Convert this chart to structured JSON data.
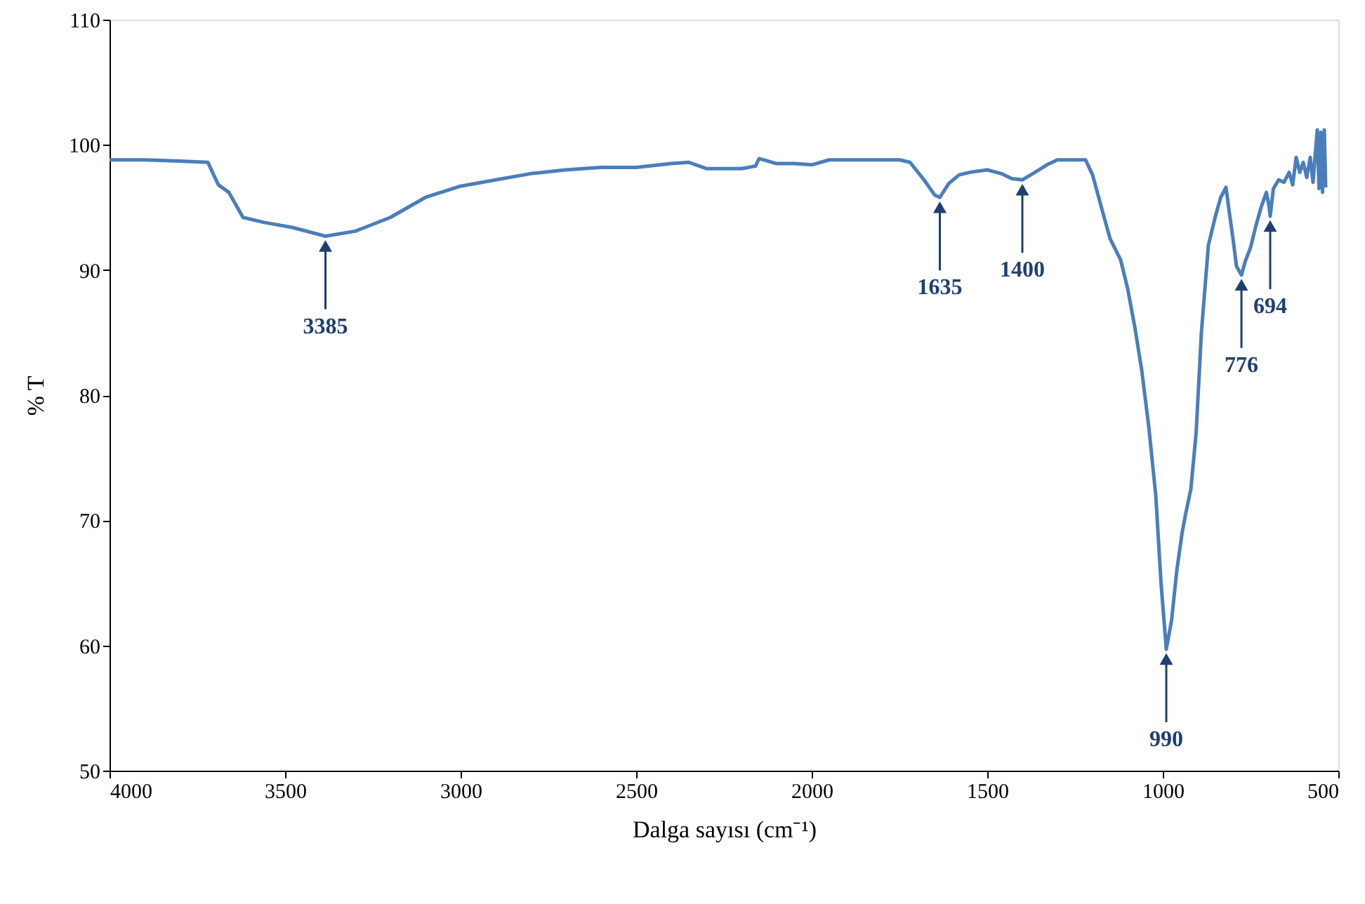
{
  "chart_data": {
    "type": "line",
    "xlabel": "Dalga sayısı (cm⁻¹)",
    "ylabel": "% T",
    "xlim": [
      4000,
      500
    ],
    "xticks": [
      4000,
      3500,
      3000,
      2500,
      2000,
      1500,
      1000,
      500
    ],
    "ylim": [
      50,
      110
    ],
    "yticks": [
      50,
      60,
      70,
      80,
      90,
      100,
      110
    ],
    "grid": false,
    "marker": "none",
    "line_style": "solid",
    "series": [
      {
        "color": "#4a7ebb",
        "x": [
          4000,
          3900,
          3800,
          3720,
          3690,
          3660,
          3640,
          3620,
          3560,
          3480,
          3385,
          3300,
          3200,
          3100,
          3000,
          2900,
          2800,
          2700,
          2600,
          2500,
          2400,
          2350,
          2300,
          2200,
          2160,
          2150,
          2100,
          2050,
          2000,
          1950,
          1850,
          1750,
          1720,
          1680,
          1650,
          1635,
          1610,
          1580,
          1550,
          1500,
          1460,
          1430,
          1400,
          1370,
          1330,
          1300,
          1250,
          1220,
          1200,
          1170,
          1150,
          1120,
          1100,
          1080,
          1060,
          1040,
          1020,
          1005,
          990,
          975,
          960,
          945,
          935,
          920,
          905,
          890,
          870,
          850,
          835,
          820,
          810,
          800,
          790,
          776,
          765,
          750,
          735,
          720,
          705,
          698,
          694,
          685,
          670,
          655,
          640,
          630,
          620,
          610,
          600,
          590,
          580,
          572,
          565,
          560,
          555,
          550,
          545,
          540,
          536
        ],
        "values": [
          98.8,
          98.8,
          98.7,
          98.6,
          96.8,
          96.2,
          95.2,
          94.2,
          93.8,
          93.4,
          92.7,
          93.1,
          94.2,
          95.8,
          96.7,
          97.2,
          97.7,
          98.0,
          98.2,
          98.2,
          98.5,
          98.6,
          98.1,
          98.1,
          98.3,
          98.9,
          98.5,
          98.5,
          98.4,
          98.8,
          98.8,
          98.8,
          98.6,
          97.2,
          96.0,
          95.8,
          96.9,
          97.6,
          97.8,
          98.0,
          97.7,
          97.3,
          97.2,
          97.7,
          98.4,
          98.8,
          98.8,
          98.8,
          97.6,
          94.5,
          92.5,
          90.8,
          88.5,
          85.5,
          82.0,
          77.5,
          72.0,
          65.0,
          59.7,
          62.0,
          66.0,
          69.0,
          70.5,
          72.5,
          77.0,
          85.0,
          92.0,
          94.3,
          95.8,
          96.6,
          94.5,
          92.5,
          90.3,
          89.6,
          90.7,
          91.8,
          93.5,
          95.0,
          96.2,
          95.2,
          94.3,
          96.5,
          97.2,
          97.0,
          97.8,
          96.8,
          99.0,
          97.8,
          98.6,
          97.4,
          99.0,
          97.0,
          99.5,
          101.2,
          96.5,
          101.0,
          96.2,
          101.2,
          96.6
        ]
      }
    ],
    "annotations": [
      {
        "text": "3385",
        "x": 3385,
        "y": 92.7
      },
      {
        "text": "1635",
        "x": 1635,
        "y": 95.8
      },
      {
        "text": "1400",
        "x": 1400,
        "y": 97.2
      },
      {
        "text": "990",
        "x": 990,
        "y": 59.7
      },
      {
        "text": "776",
        "x": 776,
        "y": 89.6
      },
      {
        "text": "694",
        "x": 694,
        "y": 94.3
      }
    ]
  }
}
